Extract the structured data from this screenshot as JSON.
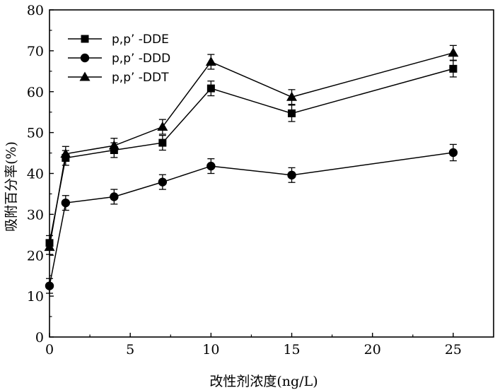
{
  "chart_data": {
    "type": "line",
    "xlabel": "改性剂浓度(ng/L)",
    "ylabel": "吸附百分率(%)",
    "xlim": [
      0,
      27.5
    ],
    "ylim": [
      0,
      80
    ],
    "xticks": [
      0,
      5,
      10,
      15,
      20,
      25
    ],
    "yticks": [
      0,
      10,
      20,
      30,
      40,
      50,
      60,
      70,
      80
    ],
    "x": [
      0,
      1,
      4,
      7,
      10,
      15,
      25
    ],
    "series": [
      {
        "name": "p,p’ -DDE",
        "marker": "square",
        "values": [
          23.0,
          43.8,
          45.7,
          47.5,
          60.8,
          54.7,
          65.6
        ],
        "errors": [
          1.8,
          1.8,
          1.8,
          1.8,
          1.8,
          2.0,
          2.0
        ]
      },
      {
        "name": "p,p’ -DDD",
        "marker": "circle",
        "values": [
          12.5,
          32.8,
          34.3,
          37.9,
          41.8,
          39.6,
          45.1
        ],
        "errors": [
          1.8,
          1.8,
          1.8,
          1.8,
          1.8,
          1.8,
          2.0
        ]
      },
      {
        "name": "p,p’ -DDT",
        "marker": "triangle",
        "values": [
          22.0,
          44.8,
          46.8,
          51.4,
          67.3,
          58.7,
          69.5
        ],
        "errors": [
          1.8,
          1.8,
          1.8,
          1.8,
          1.8,
          1.8,
          1.8
        ]
      }
    ],
    "grid": false,
    "legend_position": "top-left"
  }
}
